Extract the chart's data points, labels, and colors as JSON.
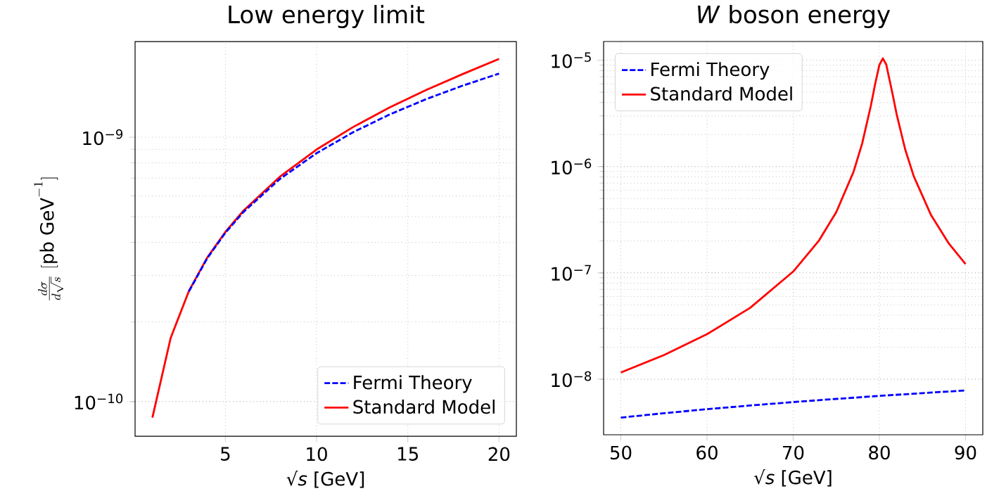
{
  "chart_data": [
    {
      "type": "line",
      "title": "Low energy limit",
      "xlabel": "√*s* [GeV]",
      "ylabel": "\\frac{d\\sigma}{d\\sqrt{s}}\\ [\\mathrm{pb\\ GeV}^{-1}]",
      "log": "y",
      "grid": true,
      "legend": "bottom right",
      "xlim": [
        0.05,
        20.95
      ],
      "ylim": [
        7.4e-11,
        2.3e-09
      ],
      "xticks": [
        5,
        10,
        15,
        20
      ],
      "yticks": [
        {
          "value": 1e-10,
          "label": "10$^{−10}$"
        },
        {
          "value": 1e-09,
          "label": "10$^{−9}$"
        }
      ],
      "series": [
        {
          "name": "Fermi Theory",
          "color": "#0000ff",
          "line_style": "dashed",
          "x": [
            3,
            4,
            5,
            6,
            8,
            10,
            12,
            14,
            16,
            18,
            20
          ],
          "values": [
            2.61e-10,
            3.48e-10,
            4.35e-10,
            5.22e-10,
            6.96e-10,
            8.7e-10,
            1.044e-09,
            1.218e-09,
            1.392e-09,
            1.566e-09,
            1.74e-09
          ]
        },
        {
          "name": "Standard Model",
          "color": "#ff0000",
          "line_style": "solid",
          "x": [
            1,
            2,
            3,
            4,
            5,
            6,
            8,
            10,
            12,
            14,
            16,
            18,
            20
          ],
          "values": [
            8.7e-11,
            1.74e-10,
            2.62e-10,
            3.5e-10,
            4.38e-10,
            5.28e-10,
            7.1e-10,
            8.98e-10,
            1.092e-09,
            1.295e-09,
            1.508e-09,
            1.732e-09,
            1.977e-09
          ]
        }
      ]
    },
    {
      "type": "line",
      "title": "*W* boson energy",
      "xlabel": "√*s* [GeV]",
      "log": "y",
      "grid": true,
      "legend": "top left",
      "xlim": [
        48,
        92
      ],
      "ylim": [
        3e-09,
        1.5e-05
      ],
      "xticks": [
        50,
        60,
        70,
        80,
        90
      ],
      "yticks": [
        {
          "value": 1e-08,
          "label": "10$^{−8}$"
        },
        {
          "value": 1e-07,
          "label": "10$^{−7}$"
        },
        {
          "value": 1e-06,
          "label": "10$^{−6}$"
        },
        {
          "value": 1e-05,
          "label": "10$^{−5}$"
        }
      ],
      "series": [
        {
          "name": "Fermi Theory",
          "color": "#0000ff",
          "line_style": "dashed",
          "x": [
            50,
            55,
            60,
            65,
            70,
            75,
            80,
            85,
            90
          ],
          "values": [
            4.35e-09,
            4.785e-09,
            5.22e-09,
            5.655e-09,
            6.09e-09,
            6.525e-09,
            6.96e-09,
            7.395e-09,
            7.83e-09
          ]
        },
        {
          "name": "Standard Model",
          "color": "#ff0000",
          "line_style": "solid",
          "x": [
            50,
            55,
            60,
            65,
            70,
            73,
            75,
            77,
            78,
            79,
            79.5,
            80,
            80.4,
            80.8,
            81.5,
            82,
            83,
            84,
            86,
            88,
            90
          ],
          "values": [
            1.155e-08,
            1.686e-08,
            2.65e-08,
            4.687e-08,
            1.028e-07,
            2.016e-07,
            3.724e-07,
            8.905e-07,
            1.644e-06,
            3.69e-06,
            5.922e-06,
            9.027e-06,
            1.04e-05,
            9.106e-06,
            4.953e-06,
            3.118e-06,
            1.447e-06,
            8.071e-07,
            3.488e-07,
            1.92e-07,
            1.21e-07
          ]
        }
      ]
    }
  ]
}
